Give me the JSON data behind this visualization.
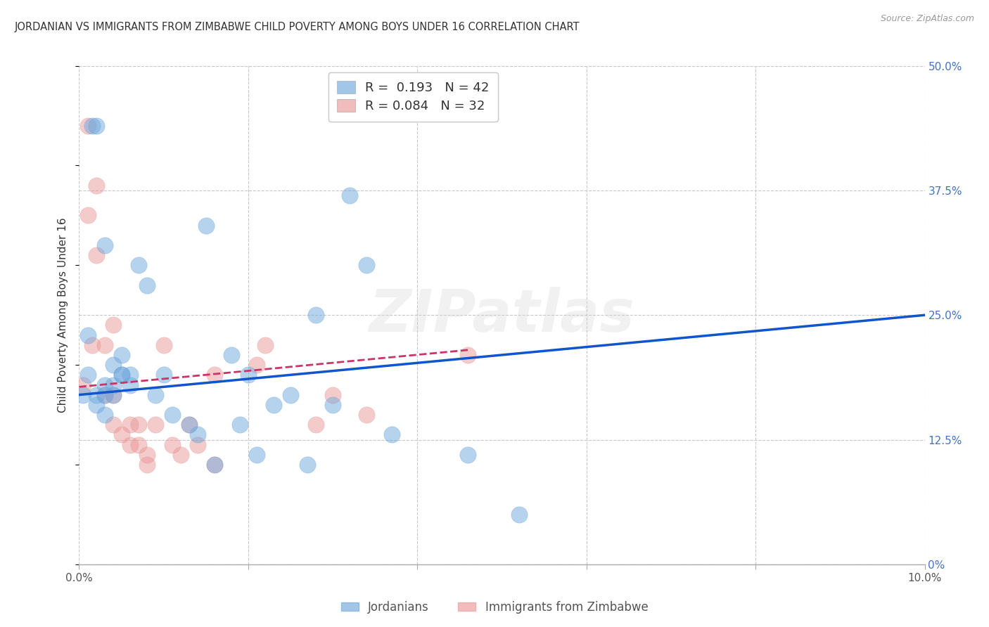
{
  "title": "JORDANIAN VS IMMIGRANTS FROM ZIMBABWE CHILD POVERTY AMONG BOYS UNDER 16 CORRELATION CHART",
  "source": "Source: ZipAtlas.com",
  "ylabel": "Child Poverty Among Boys Under 16",
  "xlim": [
    0.0,
    0.1
  ],
  "ylim": [
    0.0,
    0.5
  ],
  "xticks": [
    0.0,
    0.02,
    0.04,
    0.06,
    0.08,
    0.1
  ],
  "yticks": [
    0.0,
    0.125,
    0.25,
    0.375,
    0.5
  ],
  "ytick_labels": [
    "0%",
    "12.5%",
    "25.0%",
    "37.5%",
    "50.0%"
  ],
  "xtick_labels": [
    "0.0%",
    "",
    "",
    "",
    "",
    "10.0%"
  ],
  "blue_R": "0.193",
  "blue_N": "42",
  "pink_R": "0.084",
  "pink_N": "32",
  "blue_color": "#6fa8dc",
  "pink_color": "#ea9999",
  "trend_blue_color": "#1155cc",
  "trend_pink_color": "#cc3366",
  "legend_label_blue": "Jordanians",
  "legend_label_pink": "Immigrants from Zimbabwe",
  "blue_scatter_x": [
    0.0005,
    0.001,
    0.001,
    0.0015,
    0.002,
    0.002,
    0.002,
    0.003,
    0.003,
    0.003,
    0.003,
    0.004,
    0.004,
    0.004,
    0.005,
    0.005,
    0.005,
    0.006,
    0.006,
    0.007,
    0.008,
    0.009,
    0.01,
    0.011,
    0.013,
    0.014,
    0.015,
    0.016,
    0.018,
    0.019,
    0.02,
    0.021,
    0.023,
    0.025,
    0.027,
    0.028,
    0.03,
    0.032,
    0.034,
    0.037,
    0.046,
    0.052
  ],
  "blue_scatter_y": [
    0.17,
    0.23,
    0.19,
    0.44,
    0.44,
    0.17,
    0.16,
    0.32,
    0.18,
    0.17,
    0.15,
    0.2,
    0.18,
    0.17,
    0.19,
    0.21,
    0.19,
    0.19,
    0.18,
    0.3,
    0.28,
    0.17,
    0.19,
    0.15,
    0.14,
    0.13,
    0.34,
    0.1,
    0.21,
    0.14,
    0.19,
    0.11,
    0.16,
    0.17,
    0.1,
    0.25,
    0.16,
    0.37,
    0.3,
    0.13,
    0.11,
    0.05
  ],
  "pink_scatter_x": [
    0.0005,
    0.001,
    0.001,
    0.0015,
    0.002,
    0.002,
    0.003,
    0.003,
    0.004,
    0.004,
    0.004,
    0.005,
    0.006,
    0.006,
    0.007,
    0.007,
    0.008,
    0.008,
    0.009,
    0.01,
    0.011,
    0.012,
    0.013,
    0.014,
    0.016,
    0.016,
    0.021,
    0.022,
    0.028,
    0.03,
    0.034,
    0.046
  ],
  "pink_scatter_y": [
    0.18,
    0.44,
    0.35,
    0.22,
    0.38,
    0.31,
    0.22,
    0.17,
    0.24,
    0.17,
    0.14,
    0.13,
    0.14,
    0.12,
    0.14,
    0.12,
    0.11,
    0.1,
    0.14,
    0.22,
    0.12,
    0.11,
    0.14,
    0.12,
    0.19,
    0.1,
    0.2,
    0.22,
    0.14,
    0.17,
    0.15,
    0.21
  ],
  "blue_trend_x": [
    0.0,
    0.1
  ],
  "blue_trend_y": [
    0.17,
    0.25
  ],
  "pink_trend_x": [
    0.0,
    0.046
  ],
  "pink_trend_y": [
    0.178,
    0.215
  ],
  "watermark": "ZIPatlas",
  "background_color": "#ffffff",
  "grid_color": "#c8c8c8"
}
